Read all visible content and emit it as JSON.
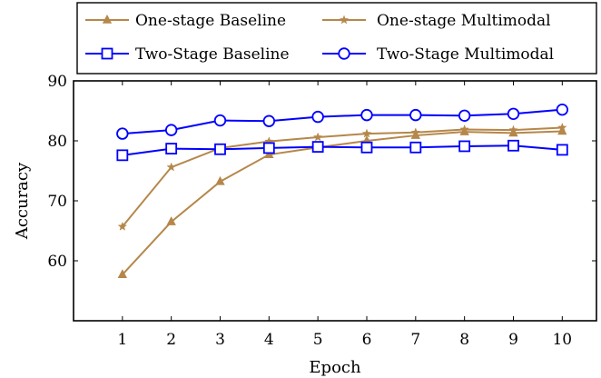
{
  "chart_data": {
    "type": "line",
    "xlabel": "Epoch",
    "ylabel": "Accuracy",
    "x": [
      1,
      2,
      3,
      4,
      5,
      6,
      7,
      8,
      9,
      10
    ],
    "xlim": [
      0,
      10.7
    ],
    "ylim": [
      50,
      90
    ],
    "xticks": [
      "1",
      "2",
      "3",
      "4",
      "5",
      "6",
      "7",
      "8",
      "9",
      "10"
    ],
    "yticks": [
      "60",
      "70",
      "80",
      "90"
    ],
    "grid": false,
    "legend_position": "top",
    "series": [
      {
        "name": "One-stage Baseline",
        "color": "#b5874a",
        "marker": "triangle",
        "values": [
          57.7,
          66.5,
          73.2,
          77.7,
          78.9,
          80.0,
          80.9,
          81.5,
          81.3,
          81.6
        ]
      },
      {
        "name": "One-stage Multimodal",
        "color": "#b5874a",
        "marker": "star",
        "values": [
          65.7,
          75.6,
          78.8,
          79.9,
          80.6,
          81.2,
          81.4,
          81.9,
          81.8,
          82.2
        ]
      },
      {
        "name": "Two-Stage Baseline",
        "color": "#0000ff",
        "marker": "square",
        "values": [
          77.6,
          78.7,
          78.6,
          78.8,
          79.0,
          78.9,
          78.9,
          79.1,
          79.2,
          78.5
        ]
      },
      {
        "name": "Two-Stage Multimodal",
        "color": "#0000ff",
        "marker": "circle",
        "values": [
          81.2,
          81.8,
          83.4,
          83.3,
          84.0,
          84.3,
          84.3,
          84.2,
          84.5,
          85.2
        ]
      }
    ]
  }
}
